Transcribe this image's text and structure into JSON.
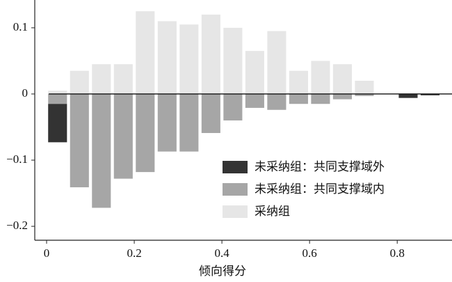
{
  "chart_data": {
    "type": "bar",
    "stacked": true,
    "x_label": "倾向得分",
    "x": [
      0.025,
      0.075,
      0.125,
      0.175,
      0.225,
      0.275,
      0.325,
      0.375,
      0.425,
      0.475,
      0.525,
      0.575,
      0.625,
      0.675,
      0.725,
      0.825,
      0.875
    ],
    "series": [
      {
        "name": "未采纳组：共同支撑域外",
        "color": "#333333",
        "values": [
          -0.058,
          null,
          null,
          null,
          null,
          null,
          null,
          null,
          null,
          null,
          null,
          null,
          null,
          null,
          null,
          -0.006,
          -0.002
        ]
      },
      {
        "name": "未采纳组：共同支撑域内",
        "color": "#a6a6a6",
        "values": [
          -0.015,
          -0.141,
          -0.172,
          -0.128,
          -0.118,
          -0.087,
          -0.087,
          -0.059,
          -0.04,
          -0.021,
          -0.024,
          -0.015,
          -0.015,
          -0.008,
          -0.003,
          null,
          null
        ]
      },
      {
        "name": "采纳组",
        "color": "#e6e6e6",
        "values": [
          0.005,
          0.035,
          0.045,
          0.045,
          0.125,
          0.11,
          0.105,
          0.12,
          0.1,
          0.065,
          0.095,
          0.035,
          0.05,
          0.045,
          0.02,
          null,
          null
        ]
      }
    ],
    "xlim": [
      -0.027,
      0.925
    ],
    "xticks": [
      0,
      0.2,
      0.4,
      0.6,
      0.8
    ],
    "ylim": [
      -0.221,
      0.142
    ],
    "yticks": [
      {
        "value": -0.2,
        "label": "−0.2"
      },
      {
        "value": -0.1,
        "label": "−0.1"
      },
      0,
      0.1
    ],
    "grid": false,
    "legend": "lower right"
  }
}
